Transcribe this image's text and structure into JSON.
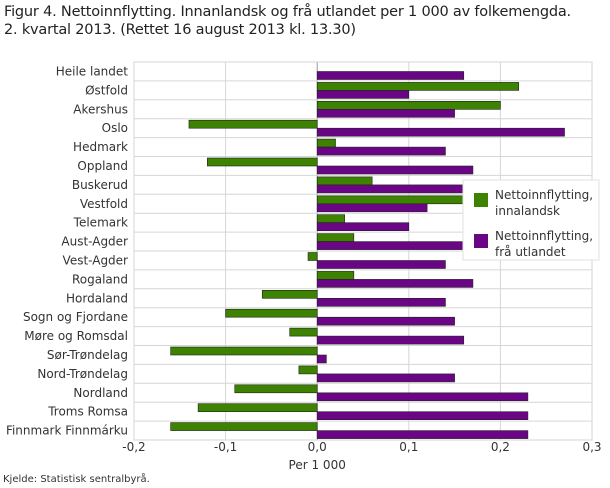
{
  "chart_data": {
    "type": "bar",
    "orientation": "horizontal",
    "title": "Figur 4. Nettoinnflytting. Innanlandsk og frå utlandet per 1 000 av folkemengda.",
    "subtitle": "2. kvartal 2013. (Rettet 16 august 2013 kl. 13.30)",
    "xlabel": "Per 1 000",
    "xlim": [
      -0.2,
      0.3
    ],
    "xticks": [
      "-0,2",
      "-0,1",
      "0,0",
      "0,1",
      "0,2",
      "0,3"
    ],
    "grid": true,
    "legend_position": "right",
    "categories": [
      "Heile landet",
      "Østfold",
      "Akershus",
      "Oslo",
      "Hedmark",
      "Oppland",
      "Buskerud",
      "Vestfold",
      "Telemark",
      "Aust-Agder",
      "Vest-Agder",
      "Rogaland",
      "Hordaland",
      "Sogn og Fjordane",
      "Møre og Romsdal",
      "Sør-Trøndelag",
      "Nord-Trøndelag",
      "Nordland",
      "Troms Romsa",
      "Finnmark Finnmárku"
    ],
    "series": [
      {
        "name": "Nettoinnflytting, innalandsk",
        "legend_lines": [
          "Nettoinnflytting,",
          "innalandsk"
        ],
        "color": "#3d8200",
        "values": [
          0,
          0.22,
          0.2,
          -0.14,
          0.02,
          -0.12,
          0.06,
          0.16,
          0.03,
          0.04,
          -0.01,
          0.04,
          -0.06,
          -0.1,
          -0.03,
          -0.16,
          -0.02,
          -0.09,
          -0.13,
          -0.16
        ]
      },
      {
        "name": "Nettoinnflytting, frå utlandet",
        "legend_lines": [
          "Nettoinnflytting,",
          "frå utlandet"
        ],
        "color": "#6a0686",
        "values": [
          0.16,
          0.1,
          0.15,
          0.27,
          0.14,
          0.17,
          0.2,
          0.12,
          0.1,
          0.16,
          0.14,
          0.17,
          0.14,
          0.15,
          0.16,
          0.01,
          0.15,
          0.23,
          0.23,
          0.23
        ]
      }
    ]
  },
  "source": "Kjelde: Statistisk sentralbyrå."
}
